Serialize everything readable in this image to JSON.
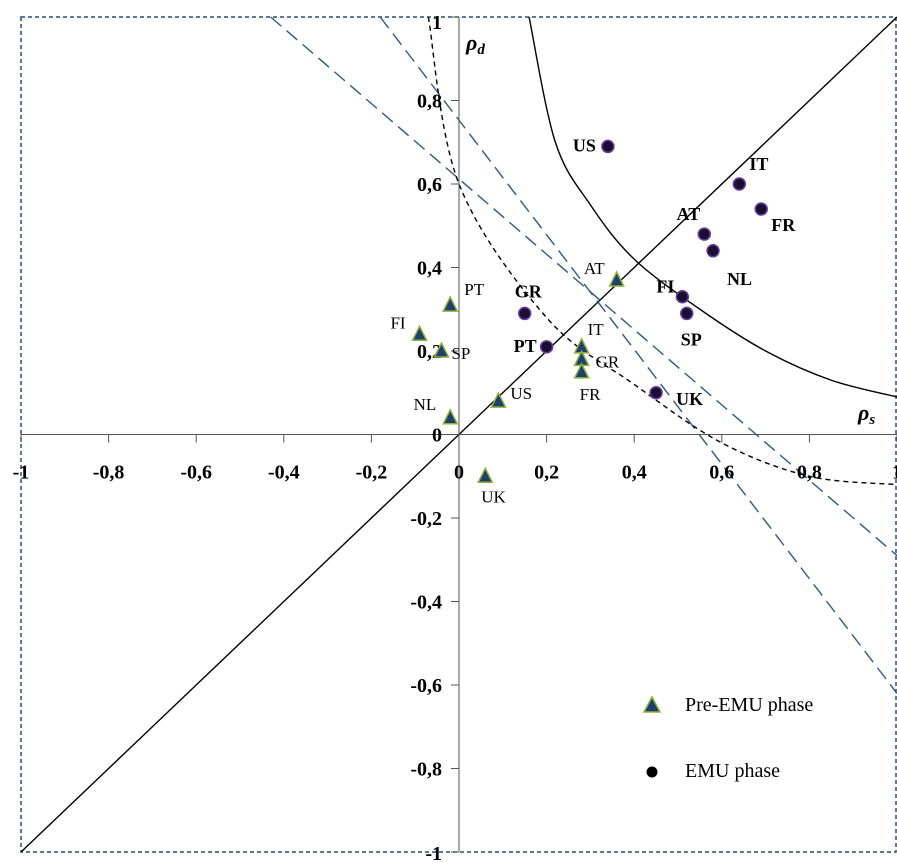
{
  "chart_data": {
    "type": "scatter",
    "xlim": [
      -1,
      1
    ],
    "ylim": [
      -1,
      1
    ],
    "x_ticks": [
      "-1",
      "-0,8",
      "-0,6",
      "-0,4",
      "-0,2",
      "0",
      "0,2",
      "0,4",
      "0,6",
      "0,8",
      "1"
    ],
    "x_tick_values": [
      -1,
      -0.8,
      -0.6,
      -0.4,
      -0.2,
      0,
      0.2,
      0.4,
      0.6,
      0.8,
      1
    ],
    "y_ticks": [
      "1",
      "0,8",
      "0,6",
      "0,4",
      "0,2",
      "0",
      "-0,2",
      "-0,4",
      "-0,6",
      "-0,8",
      "-1"
    ],
    "y_tick_values": [
      1,
      0.8,
      0.6,
      0.4,
      0.2,
      0,
      -0.2,
      -0.4,
      -0.6,
      -0.8,
      -1
    ],
    "xlabel": "ρ",
    "xlabel_sub": "s",
    "ylabel": "ρ",
    "ylabel_sub": "d",
    "grid": false,
    "legend_position": "bottom-right",
    "series": [
      {
        "name": "Pre-EMU phase",
        "marker": "triangle",
        "color": "#1f3f6e",
        "edge_color": "#8db33a",
        "points": [
          {
            "label": "PT",
            "x": -0.02,
            "y": 0.31
          },
          {
            "label": "FI",
            "x": -0.09,
            "y": 0.24
          },
          {
            "label": "SP",
            "x": -0.04,
            "y": 0.2
          },
          {
            "label": "NL",
            "x": -0.02,
            "y": 0.04
          },
          {
            "label": "US",
            "x": 0.09,
            "y": 0.08
          },
          {
            "label": "UK",
            "x": 0.06,
            "y": -0.1
          },
          {
            "label": "AT",
            "x": 0.36,
            "y": 0.37
          },
          {
            "label": "IT",
            "x": 0.28,
            "y": 0.21
          },
          {
            "label": "GR",
            "x": 0.28,
            "y": 0.18
          },
          {
            "label": "FR",
            "x": 0.28,
            "y": 0.15
          }
        ]
      },
      {
        "name": "EMU phase",
        "marker": "circle",
        "color": "#1a0f2e",
        "edge_color": "#6a3aa8",
        "points": [
          {
            "label": "US",
            "x": 0.34,
            "y": 0.69
          },
          {
            "label": "IT",
            "x": 0.64,
            "y": 0.6
          },
          {
            "label": "FR",
            "x": 0.69,
            "y": 0.54
          },
          {
            "label": "AT",
            "x": 0.56,
            "y": 0.48
          },
          {
            "label": "NL",
            "x": 0.58,
            "y": 0.44
          },
          {
            "label": "FI",
            "x": 0.51,
            "y": 0.33
          },
          {
            "label": "SP",
            "x": 0.52,
            "y": 0.29
          },
          {
            "label": "GR",
            "x": 0.15,
            "y": 0.29
          },
          {
            "label": "PT",
            "x": 0.2,
            "y": 0.21
          },
          {
            "label": "UK",
            "x": 0.45,
            "y": 0.1
          }
        ]
      }
    ],
    "reference_lines": {
      "diagonal": {
        "from": [
          -1,
          -1
        ],
        "to": [
          1,
          1
        ],
        "style": "solid"
      },
      "dashed_blue_1": {
        "from": [
          -0.43,
          1
        ],
        "to": [
          1,
          -0.29
        ],
        "style": "dashed"
      },
      "dashed_blue_2": {
        "from": [
          -0.18,
          1
        ],
        "to": [
          1,
          -0.62
        ],
        "style": "dashed"
      },
      "dashed_black_curve": {
        "style": "dotted",
        "points": [
          [
            -0.07,
            1
          ],
          [
            0,
            0.6
          ],
          [
            0.2,
            0.28
          ],
          [
            0.4,
            0.12
          ],
          [
            0.6,
            -0.02
          ],
          [
            0.8,
            -0.1
          ],
          [
            1,
            -0.12
          ]
        ]
      },
      "solid_black_curve": {
        "style": "solid",
        "points": [
          [
            0.16,
            1
          ],
          [
            0.22,
            0.7
          ],
          [
            0.3,
            0.55
          ],
          [
            0.4,
            0.42
          ],
          [
            0.55,
            0.3
          ],
          [
            0.7,
            0.2
          ],
          [
            0.85,
            0.13
          ],
          [
            1,
            0.09
          ]
        ]
      }
    }
  }
}
